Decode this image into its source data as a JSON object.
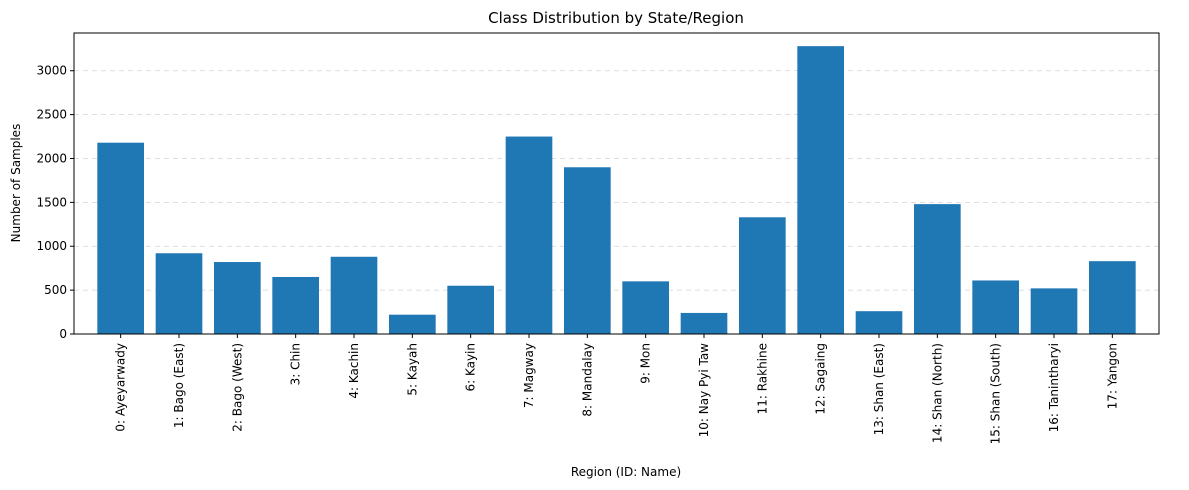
{
  "chart_data": {
    "type": "bar",
    "title": "Class Distribution by State/Region",
    "xlabel": "Region (ID: Name)",
    "ylabel": "Number of Samples",
    "ylim": [
      0,
      3430
    ],
    "yticks": [
      0,
      500,
      1000,
      1500,
      2000,
      2500,
      3000
    ],
    "grid": "y-dashed",
    "bar_color": "#1f77b4",
    "categories": [
      "0: Ayeyarwady",
      "1: Bago (East)",
      "2: Bago (West)",
      "3: Chin",
      "4: Kachin",
      "5: Kayah",
      "6: Kayin",
      "7: Magway",
      "8: Mandalay",
      "9: Mon",
      "10: Nay Pyi Taw",
      "11: Rakhine",
      "12: Sagaing",
      "13: Shan (East)",
      "14: Shan (North)",
      "15: Shan (South)",
      "16: Tanintharyi",
      "17: Yangon"
    ],
    "values": [
      2180,
      920,
      820,
      650,
      880,
      220,
      550,
      2250,
      1900,
      600,
      240,
      1330,
      3280,
      260,
      1480,
      610,
      520,
      830
    ]
  }
}
